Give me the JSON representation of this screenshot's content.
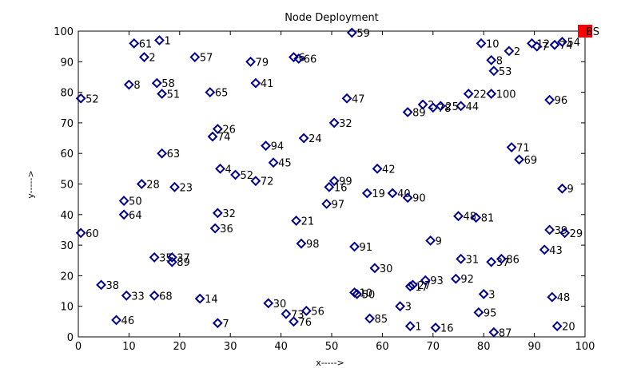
{
  "chart_data": {
    "type": "scatter",
    "title": "Node Deployment",
    "xlabel": "x----->",
    "ylabel": "y----->",
    "xlim": [
      0,
      100
    ],
    "ylim": [
      0,
      100
    ],
    "xticks": [
      "0",
      "10",
      "20",
      "30",
      "40",
      "50",
      "60",
      "70",
      "80",
      "90",
      "100"
    ],
    "yticks": [
      "0",
      "10",
      "20",
      "30",
      "40",
      "50",
      "60",
      "70",
      "80",
      "90",
      "100"
    ],
    "grid": false,
    "marker_color": "#00008B",
    "base_station": {
      "label": "BS",
      "x": 100,
      "y": 100,
      "color": "#FF0000"
    },
    "points": [
      {
        "x": 9.0,
        "y": 44.5,
        "label": "50"
      },
      {
        "x": 9.0,
        "y": 40.0,
        "label": "64"
      },
      {
        "x": 12.5,
        "y": 50.0,
        "label": "28"
      },
      {
        "x": 19.0,
        "y": 49.0,
        "label": "23"
      },
      {
        "x": 16.5,
        "y": 60.0,
        "label": "63"
      },
      {
        "x": 10.0,
        "y": 82.5,
        "label": "8"
      },
      {
        "x": 15.5,
        "y": 83.0,
        "label": "58"
      },
      {
        "x": 16.5,
        "y": 79.5,
        "label": "51"
      },
      {
        "x": 11.0,
        "y": 96.0,
        "label": "61"
      },
      {
        "x": 16.0,
        "y": 97.0,
        "label": "1"
      },
      {
        "x": 13.0,
        "y": 91.5,
        "label": "2"
      },
      {
        "x": 23.0,
        "y": 91.5,
        "label": "57"
      },
      {
        "x": 26.0,
        "y": 80.0,
        "label": "65"
      },
      {
        "x": 0.5,
        "y": 78.0,
        "label": "52"
      },
      {
        "x": 34.0,
        "y": 90.0,
        "label": "79"
      },
      {
        "x": 35.0,
        "y": 83.0,
        "label": "41"
      },
      {
        "x": 42.5,
        "y": 91.5,
        "label": "6"
      },
      {
        "x": 43.5,
        "y": 91.0,
        "label": "66"
      },
      {
        "x": 54.0,
        "y": 99.5,
        "label": "59"
      },
      {
        "x": 27.5,
        "y": 68.0,
        "label": "26"
      },
      {
        "x": 26.5,
        "y": 65.5,
        "label": "74"
      },
      {
        "x": 37.0,
        "y": 62.5,
        "label": "94"
      },
      {
        "x": 44.5,
        "y": 65.0,
        "label": "24"
      },
      {
        "x": 38.5,
        "y": 57.0,
        "label": "45"
      },
      {
        "x": 28.0,
        "y": 55.0,
        "label": "4"
      },
      {
        "x": 31.0,
        "y": 53.0,
        "label": "52"
      },
      {
        "x": 35.0,
        "y": 51.0,
        "label": "72"
      },
      {
        "x": 53.0,
        "y": 78.0,
        "label": "47"
      },
      {
        "x": 50.5,
        "y": 70.0,
        "label": "32"
      },
      {
        "x": 59.0,
        "y": 55.0,
        "label": "42"
      },
      {
        "x": 50.5,
        "y": 51.0,
        "label": "99"
      },
      {
        "x": 49.5,
        "y": 49.0,
        "label": "16"
      },
      {
        "x": 57.0,
        "y": 47.0,
        "label": "19"
      },
      {
        "x": 62.0,
        "y": 47.0,
        "label": "40"
      },
      {
        "x": 65.0,
        "y": 45.5,
        "label": "90"
      },
      {
        "x": 49.0,
        "y": 43.5,
        "label": "97"
      },
      {
        "x": 43.0,
        "y": 38.0,
        "label": "21"
      },
      {
        "x": 44.0,
        "y": 30.5,
        "label": "98"
      },
      {
        "x": 54.5,
        "y": 29.5,
        "label": "91"
      },
      {
        "x": 27.5,
        "y": 40.5,
        "label": "32"
      },
      {
        "x": 27.0,
        "y": 35.5,
        "label": "36"
      },
      {
        "x": 0.5,
        "y": 34.0,
        "label": "60"
      },
      {
        "x": 15.0,
        "y": 26.0,
        "label": "35"
      },
      {
        "x": 18.5,
        "y": 26.0,
        "label": "37"
      },
      {
        "x": 18.5,
        "y": 24.5,
        "label": "89"
      },
      {
        "x": 4.5,
        "y": 17.0,
        "label": "38"
      },
      {
        "x": 9.5,
        "y": 13.5,
        "label": "33"
      },
      {
        "x": 15.0,
        "y": 13.5,
        "label": "68"
      },
      {
        "x": 24.0,
        "y": 12.5,
        "label": "14"
      },
      {
        "x": 7.5,
        "y": 5.5,
        "label": "46"
      },
      {
        "x": 27.5,
        "y": 4.5,
        "label": "7"
      },
      {
        "x": 37.5,
        "y": 11.0,
        "label": "30"
      },
      {
        "x": 41.0,
        "y": 7.5,
        "label": "73"
      },
      {
        "x": 45.0,
        "y": 8.5,
        "label": "56"
      },
      {
        "x": 42.5,
        "y": 5.0,
        "label": "76"
      },
      {
        "x": 58.5,
        "y": 22.5,
        "label": "30"
      },
      {
        "x": 54.5,
        "y": 14.5,
        "label": "10"
      },
      {
        "x": 55.0,
        "y": 14.0,
        "label": "50"
      },
      {
        "x": 57.5,
        "y": 6.0,
        "label": "85"
      },
      {
        "x": 63.5,
        "y": 10.0,
        "label": "3"
      },
      {
        "x": 65.5,
        "y": 16.5,
        "label": "17"
      },
      {
        "x": 66.0,
        "y": 17.0,
        "label": "27"
      },
      {
        "x": 68.5,
        "y": 18.5,
        "label": "93"
      },
      {
        "x": 65.5,
        "y": 3.5,
        "label": "1"
      },
      {
        "x": 70.5,
        "y": 3.0,
        "label": "16"
      },
      {
        "x": 69.5,
        "y": 31.5,
        "label": "9"
      },
      {
        "x": 74.5,
        "y": 19.0,
        "label": "92"
      },
      {
        "x": 75.5,
        "y": 25.5,
        "label": "31"
      },
      {
        "x": 75.0,
        "y": 39.5,
        "label": "48"
      },
      {
        "x": 78.5,
        "y": 39.0,
        "label": "81"
      },
      {
        "x": 81.5,
        "y": 24.5,
        "label": "37"
      },
      {
        "x": 83.5,
        "y": 25.5,
        "label": "86"
      },
      {
        "x": 80.0,
        "y": 14.0,
        "label": "3"
      },
      {
        "x": 79.0,
        "y": 8.0,
        "label": "95"
      },
      {
        "x": 82.0,
        "y": 1.5,
        "label": "87"
      },
      {
        "x": 92.0,
        "y": 28.5,
        "label": "43"
      },
      {
        "x": 93.0,
        "y": 35.0,
        "label": "39"
      },
      {
        "x": 96.0,
        "y": 34.0,
        "label": "29"
      },
      {
        "x": 93.5,
        "y": 13.0,
        "label": "48"
      },
      {
        "x": 94.5,
        "y": 3.5,
        "label": "20"
      },
      {
        "x": 95.5,
        "y": 48.5,
        "label": "9"
      },
      {
        "x": 85.5,
        "y": 62.0,
        "label": "71"
      },
      {
        "x": 87.0,
        "y": 58.0,
        "label": "69"
      },
      {
        "x": 93.0,
        "y": 77.5,
        "label": "96"
      },
      {
        "x": 81.5,
        "y": 79.5,
        "label": "100"
      },
      {
        "x": 77.0,
        "y": 79.5,
        "label": "22"
      },
      {
        "x": 75.5,
        "y": 75.5,
        "label": "44"
      },
      {
        "x": 68.0,
        "y": 76.0,
        "label": "2"
      },
      {
        "x": 70.0,
        "y": 75.0,
        "label": "78"
      },
      {
        "x": 71.5,
        "y": 75.5,
        "label": "25"
      },
      {
        "x": 65.0,
        "y": 73.5,
        "label": "89"
      },
      {
        "x": 81.5,
        "y": 90.5,
        "label": "8"
      },
      {
        "x": 82.0,
        "y": 87.0,
        "label": "53"
      },
      {
        "x": 79.5,
        "y": 96.0,
        "label": "10"
      },
      {
        "x": 85.0,
        "y": 93.5,
        "label": "2"
      },
      {
        "x": 89.5,
        "y": 96.0,
        "label": "12"
      },
      {
        "x": 90.5,
        "y": 95.0,
        "label": "7"
      },
      {
        "x": 94.0,
        "y": 95.5,
        "label": "74"
      },
      {
        "x": 95.5,
        "y": 96.5,
        "label": "54"
      }
    ]
  }
}
